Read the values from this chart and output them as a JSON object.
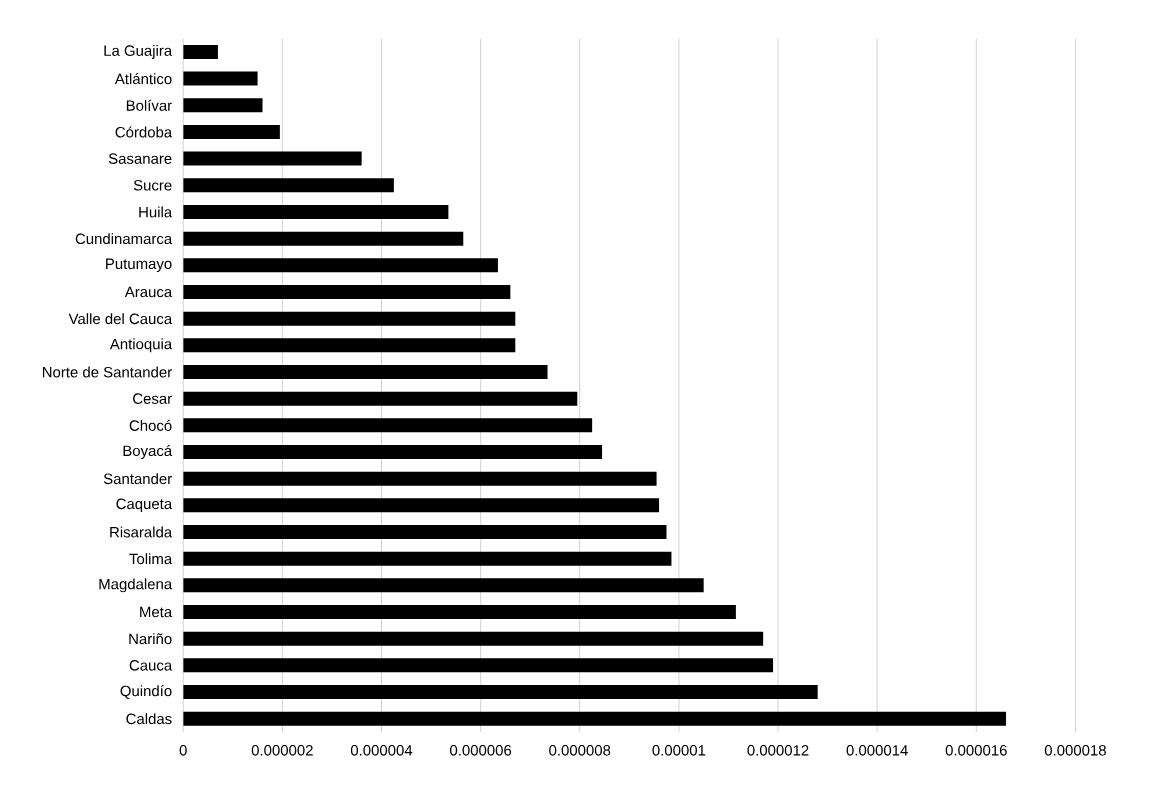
{
  "chart_data": {
    "type": "bar",
    "orientation": "horizontal",
    "categories": [
      "La Guajira",
      "Atlántico",
      "Bolívar",
      "Córdoba",
      "Sasanare",
      "Sucre",
      "Huila",
      "Cundinamarca",
      "Putumayo",
      "Arauca",
      "Valle del Cauca",
      "Antioquia",
      "Norte de Santander",
      "Cesar",
      "Chocó",
      "Boyacá",
      "Santander",
      "Caqueta",
      "Risaralda",
      "Tolima",
      "Magdalena",
      "Meta",
      "Nariño",
      "Cauca",
      "Quindío",
      "Caldas"
    ],
    "values": [
      7e-07,
      1.5e-06,
      1.6e-06,
      1.95e-06,
      3.6e-06,
      4.25e-06,
      5.35e-06,
      5.65e-06,
      6.35e-06,
      6.6e-06,
      6.7e-06,
      6.7e-06,
      7.35e-06,
      7.95e-06,
      8.25e-06,
      8.45e-06,
      9.55e-06,
      9.6e-06,
      9.75e-06,
      9.85e-06,
      1.05e-05,
      1.115e-05,
      1.17e-05,
      1.19e-05,
      1.28e-05,
      1.66e-05
    ],
    "color": "#000000",
    "xlim": [
      0,
      1.8e-05
    ],
    "xticks": [
      {
        "value": 0,
        "label": "0"
      },
      {
        "value": 2e-06,
        "label": "0.000002"
      },
      {
        "value": 4e-06,
        "label": "0.000004"
      },
      {
        "value": 6e-06,
        "label": "0.000006"
      },
      {
        "value": 8e-06,
        "label": "0.000008"
      },
      {
        "value": 1e-05,
        "label": "0.00001"
      },
      {
        "value": 1.2e-05,
        "label": "0.000012"
      },
      {
        "value": 1.4e-05,
        "label": "0.000014"
      },
      {
        "value": 1.6e-05,
        "label": "0.000016"
      },
      {
        "value": 1.8e-05,
        "label": "0.000018"
      }
    ],
    "grid": "x"
  }
}
